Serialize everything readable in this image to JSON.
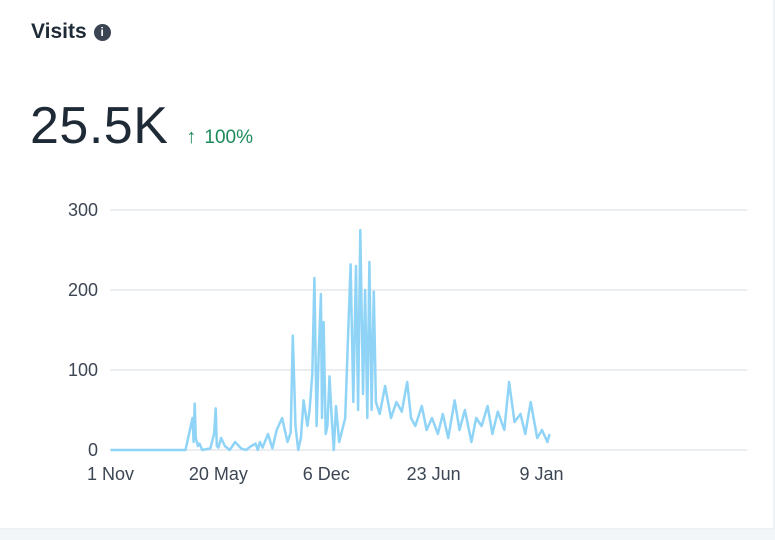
{
  "card": {
    "title": "Visits",
    "info_icon": "info-icon",
    "kpi_value": "25.5K",
    "kpi_arrow_icon": "arrow-up-icon",
    "kpi_change": "100%"
  },
  "colors": {
    "line": "#8fd4f7",
    "grid": "#e4e8ec",
    "change_positive": "#1c8a5a",
    "title": "#1f2a37"
  },
  "chart_data": {
    "type": "line",
    "title": "",
    "xlabel": "",
    "ylabel": "",
    "ylim": [
      0,
      300
    ],
    "yticks": [
      {
        "value": 0,
        "label": "0"
      },
      {
        "value": 100,
        "label": "100"
      },
      {
        "value": 200,
        "label": "200"
      },
      {
        "value": 300,
        "label": "300"
      }
    ],
    "xlim": [
      "2021-10-31",
      "2025-01-24"
    ],
    "xticks": [
      {
        "date": "2021-11-01",
        "label": "1 Nov"
      },
      {
        "date": "2022-05-20",
        "label": "20 May"
      },
      {
        "date": "2022-12-06",
        "label": "6 Dec"
      },
      {
        "date": "2023-06-23",
        "label": "23 Jun"
      },
      {
        "date": "2024-01-09",
        "label": "9 Jan"
      }
    ],
    "grid": true,
    "series": [
      {
        "x": [
          "2021-11-01",
          "2022-03-20",
          "2022-04-02",
          "2022-04-04",
          "2022-04-06",
          "2022-04-08",
          "2022-04-12",
          "2022-04-15",
          "2022-04-20",
          "2022-05-05",
          "2022-05-12",
          "2022-05-15",
          "2022-05-17",
          "2022-05-20",
          "2022-05-25",
          "2022-06-01",
          "2022-06-10",
          "2022-06-20",
          "2022-07-01",
          "2022-07-10",
          "2022-07-20",
          "2022-07-28",
          "2022-08-01",
          "2022-08-05",
          "2022-08-10",
          "2022-08-20",
          "2022-08-28",
          "2022-09-05",
          "2022-09-15",
          "2022-09-25",
          "2022-10-01",
          "2022-10-05",
          "2022-10-10",
          "2022-10-15",
          "2022-10-20",
          "2022-10-25",
          "2022-11-01",
          "2022-11-05",
          "2022-11-10",
          "2022-11-14",
          "2022-11-18",
          "2022-11-22",
          "2022-11-26",
          "2022-11-28",
          "2022-12-01",
          "2022-12-05",
          "2022-12-08",
          "2022-12-12",
          "2022-12-16",
          "2022-12-20",
          "2022-12-24",
          "2022-12-30",
          "2023-01-10",
          "2023-01-20",
          "2023-01-25",
          "2023-01-30",
          "2023-02-03",
          "2023-02-07",
          "2023-02-12",
          "2023-02-16",
          "2023-02-20",
          "2023-02-24",
          "2023-02-28",
          "2023-03-04",
          "2023-03-08",
          "2023-03-15",
          "2023-03-25",
          "2023-04-05",
          "2023-04-15",
          "2023-04-25",
          "2023-05-05",
          "2023-05-12",
          "2023-05-20",
          "2023-06-01",
          "2023-06-10",
          "2023-06-20",
          "2023-07-01",
          "2023-07-10",
          "2023-07-20",
          "2023-08-01",
          "2023-08-10",
          "2023-08-20",
          "2023-09-01",
          "2023-09-10",
          "2023-09-20",
          "2023-10-01",
          "2023-10-10",
          "2023-10-20",
          "2023-11-01",
          "2023-11-10",
          "2023-11-20",
          "2023-12-01",
          "2023-12-10",
          "2023-12-20",
          "2024-01-01",
          "2024-01-10",
          "2024-01-20",
          "2024-01-24"
        ],
        "values": [
          0,
          0,
          40,
          10,
          58,
          15,
          5,
          8,
          0,
          2,
          20,
          52,
          5,
          3,
          15,
          5,
          0,
          10,
          2,
          0,
          5,
          8,
          0,
          10,
          3,
          20,
          2,
          25,
          40,
          10,
          22,
          143,
          30,
          0,
          15,
          62,
          30,
          50,
          95,
          215,
          30,
          120,
          195,
          40,
          160,
          20,
          30,
          92,
          40,
          0,
          55,
          10,
          40,
          232,
          60,
          230,
          50,
          275,
          70,
          200,
          40,
          235,
          50,
          198,
          60,
          45,
          80,
          40,
          60,
          48,
          85,
          40,
          30,
          55,
          25,
          40,
          20,
          45,
          15,
          62,
          25,
          50,
          10,
          40,
          30,
          55,
          20,
          48,
          25,
          85,
          35,
          45,
          20,
          60,
          15,
          25,
          10,
          20
        ]
      }
    ]
  }
}
